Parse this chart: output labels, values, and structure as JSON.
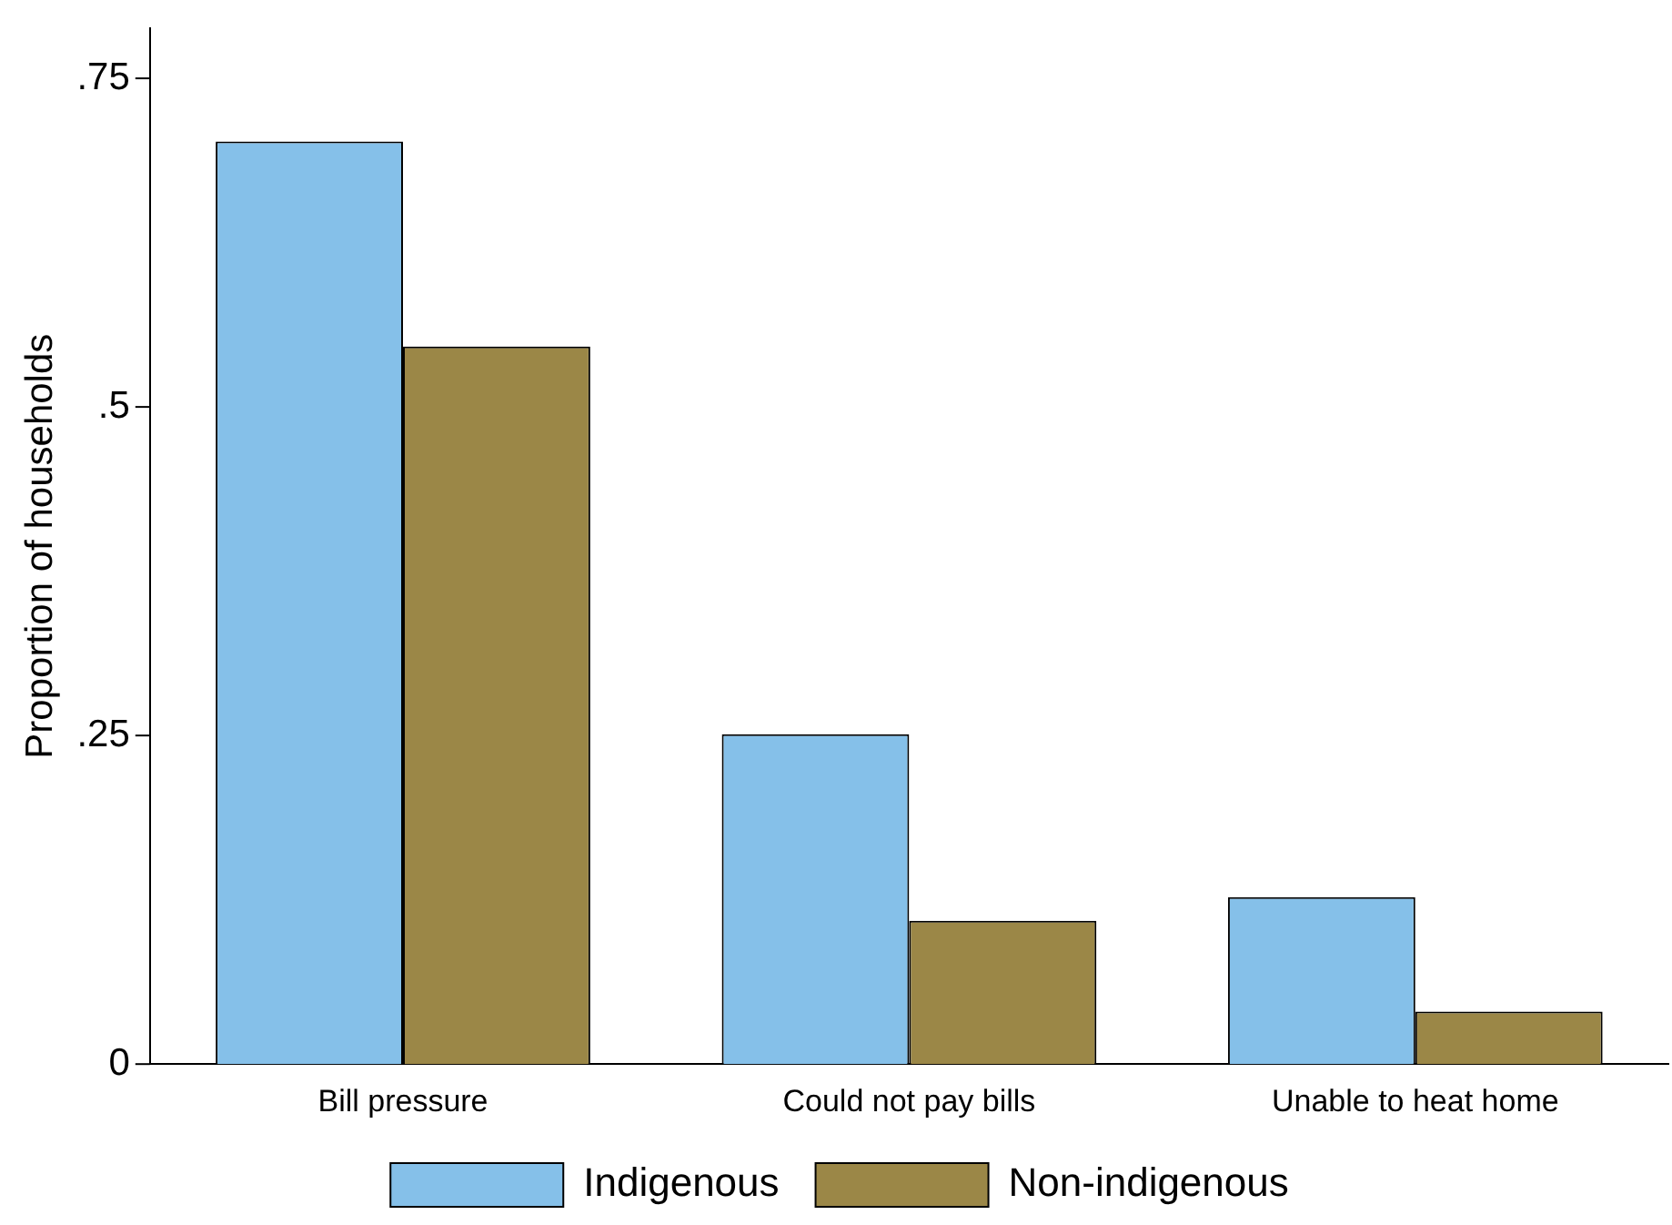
{
  "chart_data": {
    "type": "bar",
    "ylabel": "Proportion of households",
    "categories": [
      "Bill pressure",
      "Could not pay bills",
      "Unable to heat home"
    ],
    "series": [
      {
        "name": "Indigenous",
        "color": "#85c0e9",
        "values": [
          0.702,
          0.251,
          0.127
        ]
      },
      {
        "name": "Non-indigenous",
        "color": "#9b8747",
        "values": [
          0.546,
          0.109,
          0.04
        ]
      }
    ],
    "ylim": [
      0,
      0.788
    ],
    "yticks": [
      0,
      {
        "value": 0.25,
        "label": ".25"
      },
      {
        "value": 0.5,
        "label": ".5"
      },
      {
        "value": 0.75,
        "label": ".75"
      }
    ],
    "grid": false,
    "legend": "bottom"
  }
}
